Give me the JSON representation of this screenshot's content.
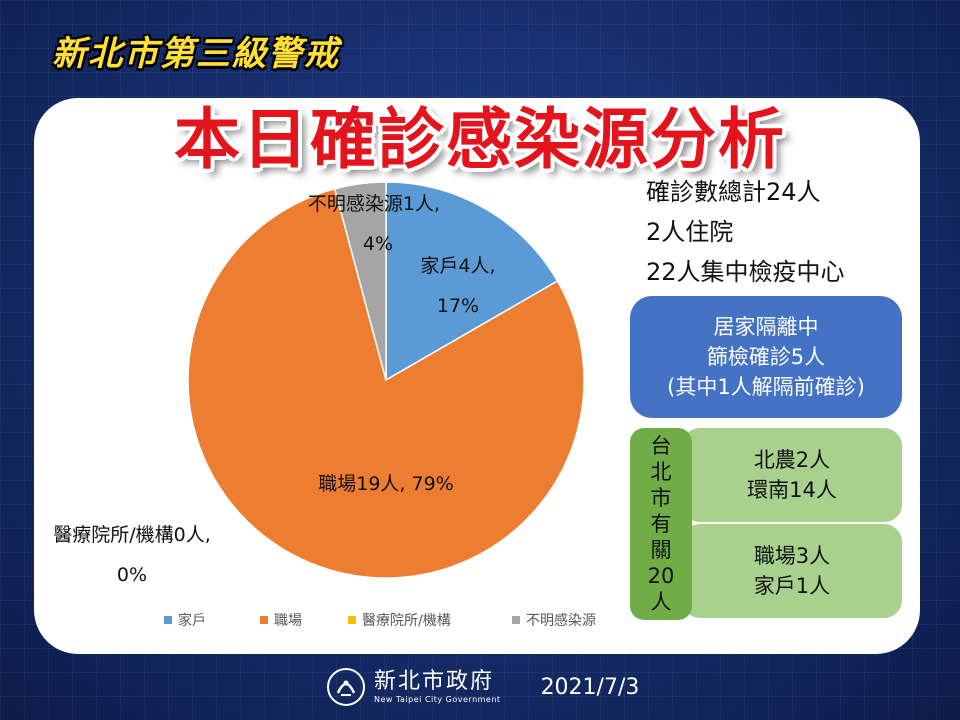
{
  "header": {
    "tag": "新北市第三級警戒",
    "title": "本日確診感染源分析"
  },
  "stats": {
    "total": "確診數總計24人",
    "hospitalized": "2人住院",
    "quarantine": "22人集中檢疫中心"
  },
  "blue_box": {
    "line1": "居家隔離中",
    "line2": "篩檢確診5人",
    "line3": "(其中1人解隔前確診)"
  },
  "green_box": {
    "vertical_chars": [
      "台",
      "北",
      "市",
      "有",
      "關",
      "20",
      "人"
    ],
    "cell1": [
      "北農2人",
      "環南14人"
    ],
    "cell2": [
      "職場3人",
      "家戶1人"
    ]
  },
  "footer": {
    "org_zh": "新北市政府",
    "org_en": "New Taipei City Government",
    "date": "2021/7/3"
  },
  "colors": {
    "household": "#5b9bd5",
    "workplace": "#ed7d31",
    "medical": "#ffc000",
    "unknown": "#a5a5a5",
    "title_red": "#e3141c",
    "tag_yellow": "#ffe033"
  },
  "chart_data": {
    "type": "pie",
    "categories": [
      "家戶",
      "職場",
      "醫療院所/機構",
      "不明感染源"
    ],
    "values": [
      4,
      19,
      0,
      1
    ],
    "percent": [
      "17%",
      "79%",
      "0%",
      "4%"
    ],
    "data_labels": [
      [
        "家戶4人,",
        "17%"
      ],
      [
        "職場19人, 79%"
      ],
      [
        "醫療院所/機構0人,",
        "0%"
      ],
      [
        "不明感染源1人,",
        "4%"
      ]
    ],
    "legend": [
      "家戶",
      "職場",
      "醫療院所/機構",
      "不明感染源"
    ],
    "legend_position": "bottom"
  }
}
